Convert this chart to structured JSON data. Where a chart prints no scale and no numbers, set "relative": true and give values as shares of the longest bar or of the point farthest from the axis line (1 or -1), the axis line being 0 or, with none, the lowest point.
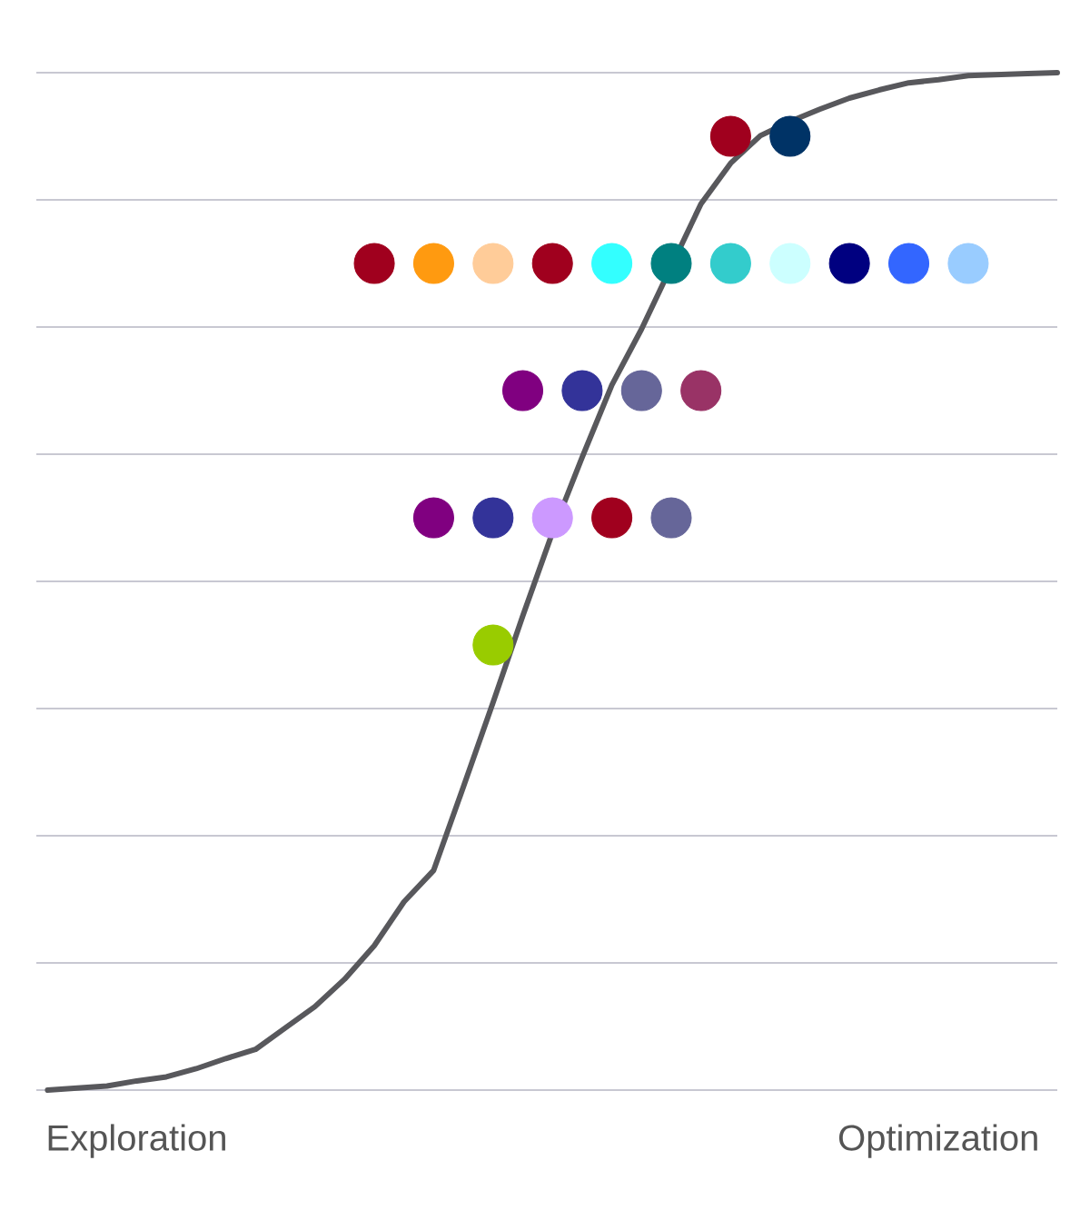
{
  "chart_data": {
    "type": "scatter",
    "relative": true,
    "grid": "y",
    "categories": [
      null,
      null,
      null,
      "Exploration",
      null,
      null,
      null,
      null,
      null,
      null,
      null,
      null,
      null,
      null,
      null,
      null,
      null,
      null,
      null,
      null,
      null,
      null,
      null,
      null,
      null,
      null,
      null,
      null,
      null,
      null,
      "Optimization",
      null,
      null,
      null,
      null
    ],
    "series": [
      {
        "type": "line",
        "color": "#58585c",
        "marker": "none",
        "line_style": "solid",
        "values": [
          0,
          0.002,
          0.004,
          0.009,
          0.013,
          0.021,
          0.031,
          0.04,
          0.061,
          0.082,
          0.109,
          0.142,
          0.185,
          0.216,
          0.298,
          0.381,
          0.466,
          0.548,
          0.622,
          0.693,
          0.748,
          null,
          0.871,
          0.911,
          0.938,
          0.952,
          0.964,
          0.975,
          0.983,
          0.99,
          0.993,
          0.997,
          0.998,
          0.999,
          1
        ]
      },
      {
        "marker": "circle",
        "values": [
          null,
          null,
          null,
          null,
          null,
          null,
          null,
          null,
          null,
          null,
          null,
          null,
          null,
          null,
          null,
          null,
          null,
          null,
          null,
          null,
          null,
          null,
          null,
          0.9375,
          null,
          0.9375,
          null,
          null,
          null,
          null,
          null,
          null,
          null,
          null,
          null
        ],
        "colors": [
          null,
          null,
          null,
          null,
          null,
          null,
          null,
          null,
          null,
          null,
          null,
          null,
          null,
          null,
          null,
          null,
          null,
          null,
          null,
          null,
          null,
          null,
          null,
          "#a0001e",
          null,
          "#003366",
          null,
          null,
          null,
          null,
          null,
          null,
          null,
          null,
          null
        ]
      },
      {
        "marker": "circle",
        "values": [
          null,
          null,
          null,
          null,
          null,
          null,
          null,
          null,
          null,
          null,
          null,
          0.8125,
          null,
          0.8125,
          null,
          0.8125,
          null,
          0.8125,
          null,
          0.8125,
          null,
          0.8125,
          null,
          0.8125,
          null,
          0.8125,
          null,
          0.8125,
          null,
          0.8125,
          null,
          0.8125,
          null,
          null,
          null
        ],
        "colors": [
          null,
          null,
          null,
          null,
          null,
          null,
          null,
          null,
          null,
          null,
          null,
          "#a0001e",
          null,
          "#ff9a10",
          null,
          "#ffcc99",
          null,
          "#a0001e",
          null,
          "#33ffff",
          null,
          "#008080",
          null,
          "#33cccc",
          null,
          "#ccffff",
          null,
          "#000080",
          null,
          "#3366ff",
          null,
          "#99ccff",
          null,
          null,
          null
        ]
      },
      {
        "marker": "circle",
        "values": [
          null,
          null,
          null,
          null,
          null,
          null,
          null,
          null,
          null,
          null,
          null,
          null,
          null,
          null,
          null,
          null,
          0.6875,
          null,
          0.6875,
          null,
          0.6875,
          null,
          0.6875,
          null,
          null,
          null,
          null,
          null,
          null,
          null,
          null,
          null,
          null,
          null,
          null
        ],
        "colors": [
          null,
          null,
          null,
          null,
          null,
          null,
          null,
          null,
          null,
          null,
          null,
          null,
          null,
          null,
          null,
          null,
          "#800080",
          null,
          "#333399",
          null,
          "#666699",
          null,
          "#993366",
          null,
          null,
          null,
          null,
          null,
          null,
          null,
          null,
          null,
          null,
          null,
          null
        ]
      },
      {
        "marker": "circle",
        "values": [
          null,
          null,
          null,
          null,
          null,
          null,
          null,
          null,
          null,
          null,
          null,
          null,
          null,
          0.5625,
          null,
          0.5625,
          null,
          0.5625,
          null,
          0.5625,
          null,
          0.5625,
          null,
          null,
          null,
          null,
          null,
          null,
          null,
          null,
          null,
          null,
          null,
          null,
          null
        ],
        "colors": [
          null,
          null,
          null,
          null,
          null,
          null,
          null,
          null,
          null,
          null,
          null,
          null,
          null,
          "#800080",
          null,
          "#333399",
          null,
          "#cc99ff",
          null,
          "#a0001e",
          null,
          "#666699",
          null,
          null,
          null,
          null,
          null,
          null,
          null,
          null,
          null,
          null,
          null,
          null,
          null
        ]
      },
      {
        "marker": "circle",
        "values": [
          null,
          null,
          null,
          null,
          null,
          null,
          null,
          null,
          null,
          null,
          null,
          null,
          null,
          null,
          null,
          0.4375,
          null,
          null,
          null,
          null,
          null,
          null,
          null,
          null,
          null,
          null,
          null,
          null,
          null,
          null,
          null,
          null,
          null,
          null,
          null
        ],
        "colors": [
          null,
          null,
          null,
          null,
          null,
          null,
          null,
          null,
          null,
          null,
          null,
          null,
          null,
          null,
          null,
          "#99cc00",
          null,
          null,
          null,
          null,
          null,
          null,
          null,
          null,
          null,
          null,
          null,
          null,
          null,
          null,
          null,
          null,
          null,
          null,
          null
        ]
      }
    ]
  }
}
